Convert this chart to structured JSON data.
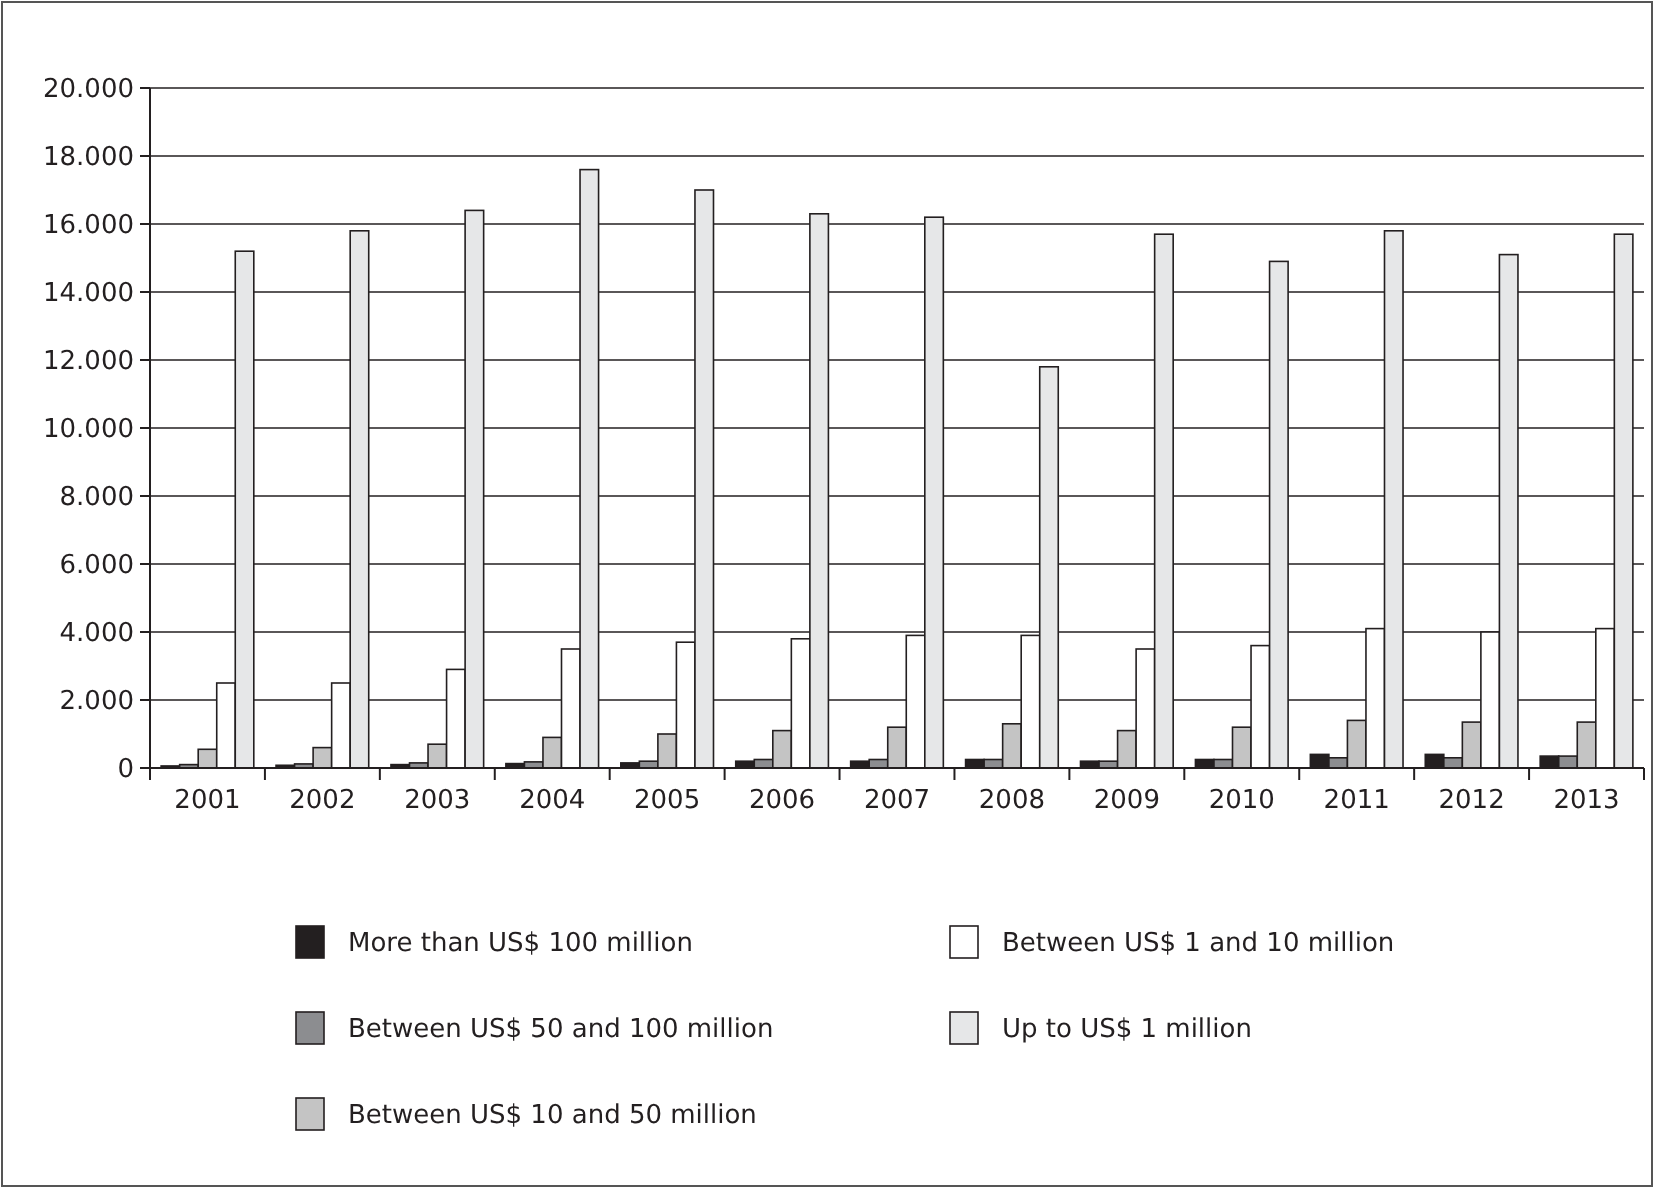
{
  "chart_data": {
    "type": "bar",
    "categories": [
      "2001",
      "2002",
      "2003",
      "2004",
      "2005",
      "2006",
      "2007",
      "2008",
      "2009",
      "2010",
      "2011",
      "2012",
      "2013"
    ],
    "series": [
      {
        "name": "More than US$ 100 million",
        "color": "#231f20",
        "values": [
          60,
          80,
          100,
          130,
          150,
          200,
          200,
          250,
          200,
          250,
          400,
          400,
          350
        ]
      },
      {
        "name": "Between US$ 50 and 100 million",
        "color": "#8c8d90",
        "values": [
          100,
          120,
          150,
          180,
          200,
          250,
          250,
          250,
          200,
          250,
          300,
          300,
          350
        ]
      },
      {
        "name": "Between US$ 10 and 50 million",
        "color": "#c4c4c4",
        "values": [
          550,
          600,
          700,
          900,
          1000,
          1100,
          1200,
          1300,
          1100,
          1200,
          1400,
          1350,
          1350
        ]
      },
      {
        "name": "Between US$ 1 and 10 million",
        "color": "#ffffff",
        "values": [
          2500,
          2500,
          2900,
          3500,
          3700,
          3800,
          3900,
          3900,
          3500,
          3600,
          4100,
          4000,
          4100
        ]
      },
      {
        "name": "Up to US$ 1 million",
        "color": "#e6e7e8",
        "values": [
          15200,
          15800,
          16400,
          17600,
          17000,
          16300,
          16200,
          11800,
          15700,
          14900,
          15800,
          15100,
          15700
        ]
      }
    ],
    "ylim": [
      0,
      20000
    ],
    "yticks": [
      {
        "value": 0,
        "label": "0"
      },
      {
        "value": 2000,
        "label": "2.000"
      },
      {
        "value": 4000,
        "label": "4.000"
      },
      {
        "value": 6000,
        "label": "6.000"
      },
      {
        "value": 8000,
        "label": "8.000"
      },
      {
        "value": 10000,
        "label": "10.000"
      },
      {
        "value": 12000,
        "label": "12.000"
      },
      {
        "value": 14000,
        "label": "14.000"
      },
      {
        "value": 16000,
        "label": "16.000"
      },
      {
        "value": 18000,
        "label": "18.000"
      },
      {
        "value": 20000,
        "label": "20.000"
      }
    ],
    "grid": "y",
    "legend": "bottom"
  }
}
